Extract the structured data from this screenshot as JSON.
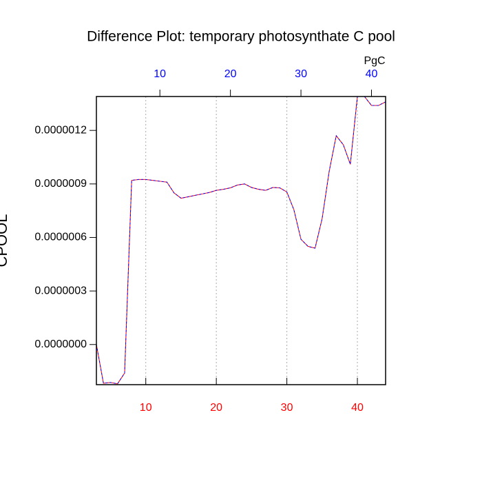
{
  "chart_data": {
    "type": "line",
    "title": "Difference Plot: temporary photosynthate C pool",
    "y_label": "CPOOL",
    "x2_label": "PgC",
    "x": [
      3,
      4,
      5,
      6,
      7,
      8,
      9,
      10,
      11,
      12,
      13,
      14,
      15,
      16,
      17,
      18,
      19,
      20,
      21,
      22,
      23,
      24,
      25,
      26,
      27,
      28,
      29,
      30,
      31,
      32,
      33,
      34,
      35,
      36,
      37,
      38,
      39,
      40,
      41,
      42,
      43,
      44
    ],
    "series": [
      {
        "color": "#ff0000",
        "dash_color": "#0000ff",
        "values": [
          0,
          -2.17e-07,
          -2.13e-07,
          -2.2e-07,
          -1.6e-07,
          9.2e-07,
          9.25e-07,
          9.25e-07,
          9.2e-07,
          9.15e-07,
          9.1e-07,
          8.5e-07,
          8.2e-07,
          8.28e-07,
          8.36e-07,
          8.44e-07,
          8.52e-07,
          8.64e-07,
          8.7e-07,
          8.78e-07,
          8.94e-07,
          9e-07,
          8.8e-07,
          8.7e-07,
          8.64e-07,
          8.8e-07,
          8.78e-07,
          8.55e-07,
          7.55e-07,
          5.9e-07,
          5.5e-07,
          5.4e-07,
          7.05e-07,
          9.7e-07,
          1.17e-06,
          1.12e-06,
          1.01e-06,
          1.39e-06,
          1.39e-06,
          1.34e-06,
          1.34e-06,
          1.36e-06
        ]
      }
    ],
    "xlim": [
      3,
      44
    ],
    "xticks": [
      10,
      20,
      30,
      40
    ],
    "xtick_color": "#ff0000",
    "x2lim": [
      1,
      42
    ],
    "x2ticks": [
      10,
      20,
      30,
      40
    ],
    "x2tick_color": "#0000ff",
    "ylim": [
      -2.25e-07,
      1.39e-06
    ],
    "yticks": [
      {
        "value": 0,
        "label": "0.0000000"
      },
      {
        "value": 3e-07,
        "label": "0.0000003"
      },
      {
        "value": 6e-07,
        "label": "0.0000006"
      },
      {
        "value": 9e-07,
        "label": "0.0000009"
      },
      {
        "value": 1.2e-06,
        "label": "0.0000012"
      }
    ],
    "grid": true
  }
}
